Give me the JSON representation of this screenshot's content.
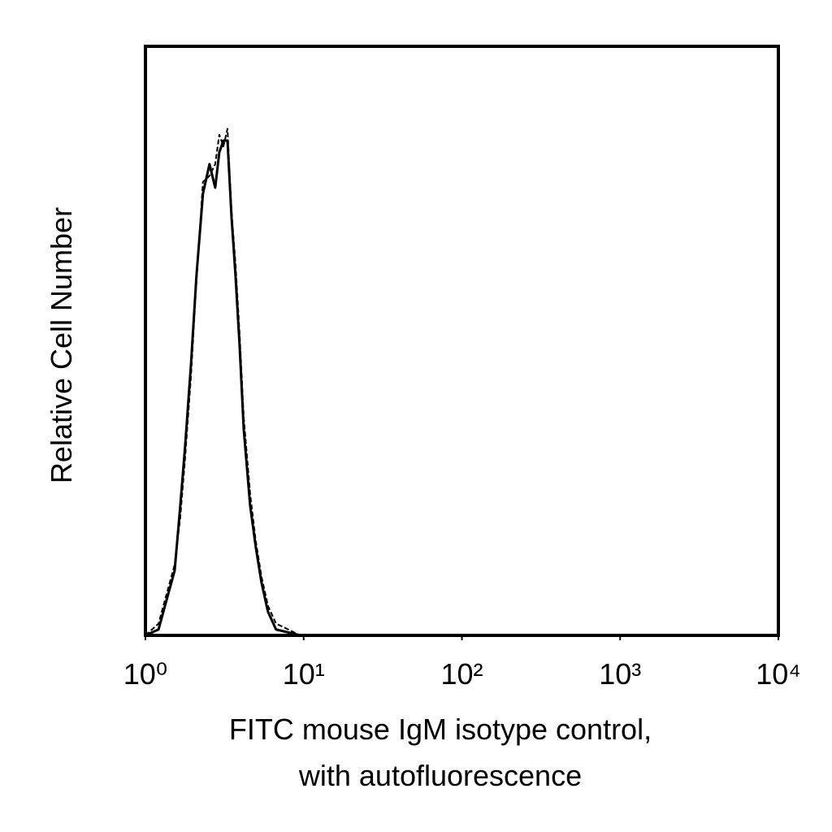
{
  "chart_data": {
    "type": "line",
    "ylabel": "Relative Cell Number",
    "xlabel": [
      "FITC mouse IgM isotype control,",
      "with autofluorescence"
    ],
    "x": [
      1.0,
      1.21,
      1.36,
      1.53,
      1.66,
      1.78,
      1.94,
      2.1,
      2.31,
      2.54,
      2.76,
      2.93,
      3.11,
      3.3,
      3.5,
      3.71,
      3.94,
      4.18,
      4.59,
      4.98,
      5.41,
      5.95,
      6.69,
      8.0,
      9.5
    ],
    "series": [
      {
        "color": "#000000",
        "dash": false,
        "values": [
          0,
          1,
          6,
          11,
          22,
          32,
          46,
          61,
          75,
          80,
          76,
          82,
          84,
          84,
          71,
          61,
          49,
          35,
          22,
          15,
          9,
          4,
          1,
          0.5,
          0
        ]
      },
      {
        "color": "#000000",
        "dash": true,
        "values": [
          0,
          2,
          7,
          12,
          20,
          30,
          44,
          60,
          77,
          78,
          80,
          85,
          83,
          86,
          72,
          63,
          51,
          37,
          24,
          16,
          10,
          5,
          2,
          1,
          0
        ]
      }
    ],
    "xscale": "log",
    "xlim": [
      1,
      10000
    ],
    "xticks": [
      {
        "value": 1,
        "label": "10⁰"
      },
      {
        "value": 10,
        "label": "10¹"
      },
      {
        "value": 100,
        "label": "10²"
      },
      {
        "value": 1000,
        "label": "10³"
      },
      {
        "value": 10000,
        "label": "10⁴"
      }
    ],
    "ylim": [
      0,
      100
    ]
  }
}
